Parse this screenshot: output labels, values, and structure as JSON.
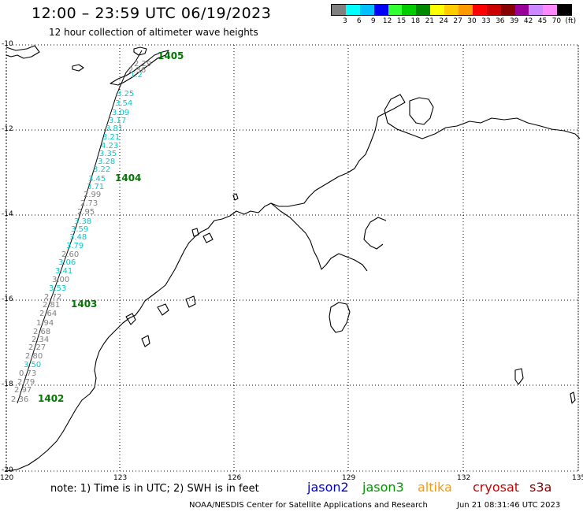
{
  "header": {
    "title": "12:00 – 23:59 UTC 06/19/2023",
    "subtitle": "12 hour collection of altimeter wave heights"
  },
  "legend": {
    "colors": [
      "#808080",
      "#00ffff",
      "#00bfff",
      "#0000ff",
      "#33ff33",
      "#00cc00",
      "#008800",
      "#ffff00",
      "#ffcc00",
      "#ff9900",
      "#ff0000",
      "#cc0000",
      "#880000",
      "#990099",
      "#cc88ff",
      "#ff88ff",
      "#000000"
    ],
    "labels": [
      "3",
      "6",
      "9",
      "12",
      "15",
      "18",
      "21",
      "24",
      "27",
      "30",
      "33",
      "36",
      "39",
      "42",
      "45",
      "70",
      "(ft)"
    ]
  },
  "axes": {
    "lat_labels": [
      "-10",
      "-12",
      "-14",
      "-16",
      "-18",
      "-20"
    ],
    "lon_labels": [
      "120",
      "123",
      "126",
      "129",
      "132",
      "135"
    ]
  },
  "track": {
    "time_labels": [
      "1405",
      "1404",
      "1403",
      "1402"
    ],
    "time_color": "#007700",
    "points": [
      {
        "text": "2.29",
        "color": "#808080"
      },
      {
        "text": "2.36",
        "color": "#808080"
      },
      {
        "text": "1.2",
        "color": "#00cccc"
      },
      {
        "text": "3.25",
        "color": "#00cccc"
      },
      {
        "text": "3.54",
        "color": "#00cccc"
      },
      {
        "text": "3.09",
        "color": "#00cccc"
      },
      {
        "text": "3.17",
        "color": "#00cccc"
      },
      {
        "text": "3.81",
        "color": "#00cccc"
      },
      {
        "text": "3.21",
        "color": "#00cccc"
      },
      {
        "text": "4.23",
        "color": "#00cccc"
      },
      {
        "text": "3.35",
        "color": "#00cccc"
      },
      {
        "text": "3.28",
        "color": "#00cccc"
      },
      {
        "text": "3.22",
        "color": "#00cccc"
      },
      {
        "text": "3.45",
        "color": "#00cccc"
      },
      {
        "text": "3.71",
        "color": "#00cccc"
      },
      {
        "text": "2.99",
        "color": "#808080"
      },
      {
        "text": "2.73",
        "color": "#808080"
      },
      {
        "text": "2.95",
        "color": "#808080"
      },
      {
        "text": "3.38",
        "color": "#00cccc"
      },
      {
        "text": "3.59",
        "color": "#00cccc"
      },
      {
        "text": "3.48",
        "color": "#00cccc"
      },
      {
        "text": "3.79",
        "color": "#00cccc"
      },
      {
        "text": "2.60",
        "color": "#808080"
      },
      {
        "text": "3.06",
        "color": "#00cccc"
      },
      {
        "text": "3.41",
        "color": "#00cccc"
      },
      {
        "text": "3.00",
        "color": "#808080"
      },
      {
        "text": "3.53",
        "color": "#00cccc"
      },
      {
        "text": "2.72",
        "color": "#808080"
      },
      {
        "text": "2.81",
        "color": "#808080"
      },
      {
        "text": "2.64",
        "color": "#808080"
      },
      {
        "text": "1.94",
        "color": "#808080"
      },
      {
        "text": "2.68",
        "color": "#808080"
      },
      {
        "text": "2.34",
        "color": "#808080"
      },
      {
        "text": "2.27",
        "color": "#808080"
      },
      {
        "text": "2.80",
        "color": "#808080"
      },
      {
        "text": "3.50",
        "color": "#00cccc"
      },
      {
        "text": "0.73",
        "color": "#808080"
      },
      {
        "text": "2.79",
        "color": "#808080"
      },
      {
        "text": "2.97",
        "color": "#808080"
      },
      {
        "text": "2.36",
        "color": "#808080"
      }
    ]
  },
  "footer": {
    "note": "note:  1) Time is in UTC; 2) SWH is in feet",
    "satellites": [
      {
        "name": "jason2",
        "color": "#0000cc"
      },
      {
        "name": "jason3",
        "color": "#009900"
      },
      {
        "name": "altika",
        "color": "#ff9900"
      },
      {
        "name": "cryosat",
        "color": "#cc0000"
      },
      {
        "name": "s3a",
        "color": "#880000"
      }
    ],
    "credit": "NOAA/NESDIS Center for Satellite Applications and Research",
    "datetime": "Jun 21 08:31:46 UTC 2023"
  }
}
